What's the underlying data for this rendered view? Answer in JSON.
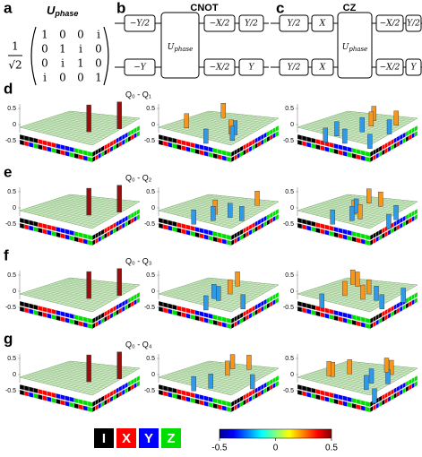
{
  "panel_a": {
    "label": "a",
    "title": "U",
    "title_sub": "phase",
    "prefactor_num": "1",
    "prefactor_den": "√2",
    "matrix": [
      [
        "1",
        "0",
        "0",
        "i"
      ],
      [
        "0",
        "1",
        "i",
        "0"
      ],
      [
        "0",
        "i",
        "1",
        "0"
      ],
      [
        "i",
        "0",
        "0",
        "1"
      ]
    ]
  },
  "panel_b": {
    "label": "b",
    "title": "CNOT",
    "center": "U",
    "center_sub": "phase",
    "top_left": [
      "−Y/2"
    ],
    "top_right": [
      "−X/2",
      "Y/2"
    ],
    "bottom_left": [
      "−Y"
    ],
    "bottom_right": [
      "−X/2",
      "Y"
    ]
  },
  "panel_c": {
    "label": "c",
    "title": "CZ",
    "center": "U",
    "center_sub": "phase",
    "top_left": [
      "Y/2",
      "X"
    ],
    "top_right": [
      "−X/2",
      "Y/2"
    ],
    "bottom_left": [
      "Y/2",
      "X"
    ],
    "bottom_right": [
      "−X/2",
      "Y"
    ]
  },
  "rows": [
    {
      "label": "d",
      "pair": "Q₀ - Q₁"
    },
    {
      "label": "e",
      "pair": "Q₀ - Q₂"
    },
    {
      "label": "f",
      "pair": "Q₀ - Q₃"
    },
    {
      "label": "g",
      "pair": "Q₀ - Q₄"
    }
  ],
  "z_ticks": [
    0.5,
    0,
    -0.5
  ],
  "legend": [
    {
      "name": "I",
      "color": "#000000"
    },
    {
      "name": "X",
      "color": "#ff0000"
    },
    {
      "name": "Y",
      "color": "#0000ff"
    },
    {
      "name": "Z",
      "color": "#00dd00"
    }
  ],
  "colorbar": {
    "lim": [
      -0.5,
      0.5
    ],
    "ticks": [
      -0.5,
      0,
      0.5
    ]
  }
}
